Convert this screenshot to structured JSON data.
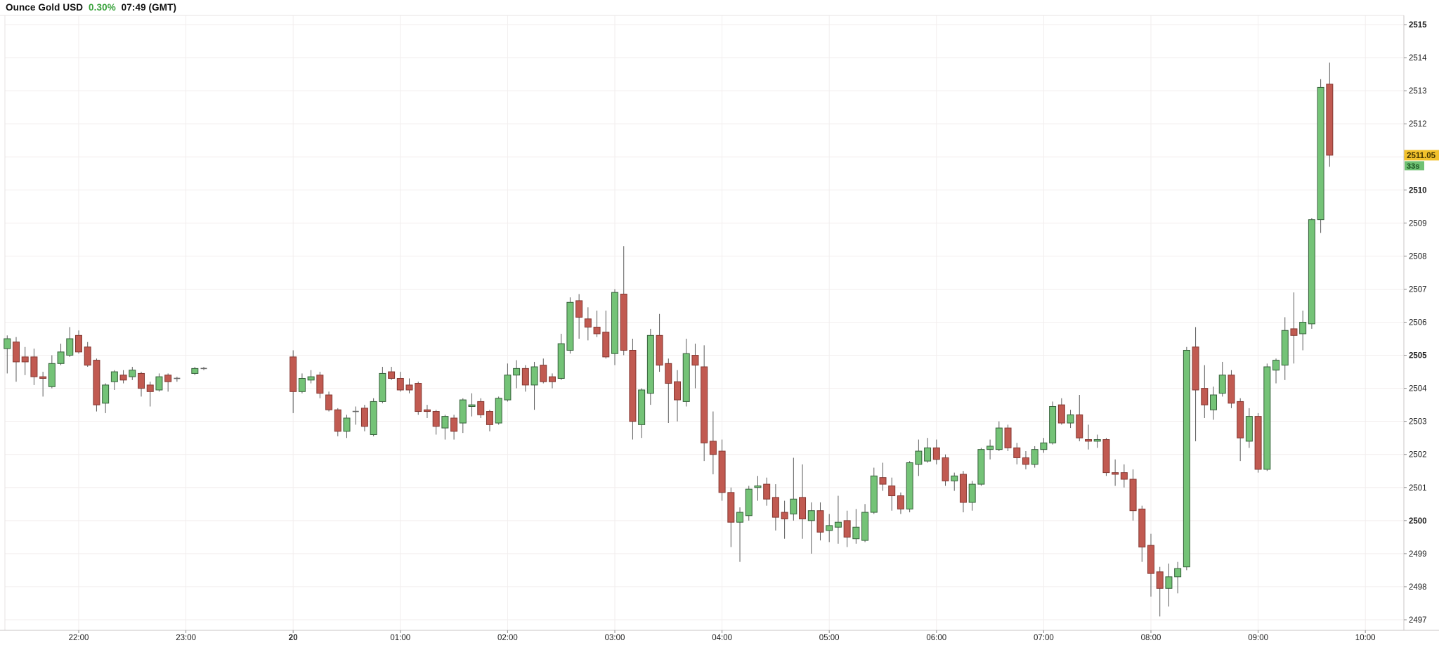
{
  "header": {
    "instrument": "Ounce Gold USD",
    "change_percent": "0.30%",
    "change_color": "#3aa33d",
    "clock": "07:49 (GMT)"
  },
  "price_axis": {
    "last_price": "2511.05",
    "last_price_value": 2511.05,
    "countdown": "33s",
    "badge_bg": "#f2c12c",
    "badge_text_color": "#433500",
    "countdown_bg": "#6fc173",
    "countdown_text_color": "#184f1f",
    "ticks": [
      {
        "value": 2515,
        "bold": true
      },
      {
        "value": 2514,
        "bold": false
      },
      {
        "value": 2513,
        "bold": false
      },
      {
        "value": 2512,
        "bold": false
      },
      {
        "value": 2511,
        "bold": false,
        "hidden": true
      },
      {
        "value": 2510,
        "bold": true
      },
      {
        "value": 2509,
        "bold": false
      },
      {
        "value": 2508,
        "bold": false
      },
      {
        "value": 2507,
        "bold": false
      },
      {
        "value": 2506,
        "bold": false
      },
      {
        "value": 2505,
        "bold": true
      },
      {
        "value": 2504,
        "bold": false
      },
      {
        "value": 2503,
        "bold": false
      },
      {
        "value": 2502,
        "bold": false
      },
      {
        "value": 2501,
        "bold": false
      },
      {
        "value": 2500,
        "bold": true
      },
      {
        "value": 2499,
        "bold": false
      },
      {
        "value": 2498,
        "bold": false
      },
      {
        "value": 2497,
        "bold": false
      }
    ]
  },
  "time_axis": {
    "labels": [
      {
        "time": "22:00",
        "label": "22:00",
        "bold": false
      },
      {
        "time": "23:00",
        "label": "23:00",
        "bold": false
      },
      {
        "time": "00:00",
        "label": "20",
        "bold": true
      },
      {
        "time": "01:00",
        "label": "01:00",
        "bold": false
      },
      {
        "time": "02:00",
        "label": "02:00",
        "bold": false
      },
      {
        "time": "03:00",
        "label": "03:00",
        "bold": false
      },
      {
        "time": "04:00",
        "label": "04:00",
        "bold": false
      },
      {
        "time": "05:00",
        "label": "05:00",
        "bold": false
      },
      {
        "time": "06:00",
        "label": "06:00",
        "bold": false
      },
      {
        "time": "07:00",
        "label": "07:00",
        "bold": false
      },
      {
        "time": "08:00",
        "label": "08:00",
        "bold": false
      },
      {
        "time": "09:00",
        "label": "09:00",
        "bold": false
      },
      {
        "time": "10:00",
        "label": "10:00",
        "bold": false
      }
    ]
  },
  "chart_data": {
    "type": "candlestick",
    "title": "Ounce Gold USD",
    "price_range": [
      2496.7,
      2515.3
    ],
    "time_range": [
      "21:20",
      "10:00"
    ],
    "grid": true,
    "colors": {
      "up_fill": "#74c377",
      "up_stroke": "#35603a",
      "down_fill": "#c15a51",
      "down_stroke": "#843731",
      "wick": "#5c5c5c",
      "flat": "#6a6a6a",
      "gridline": "#f2eeee",
      "axis_line": "#c9c4c4",
      "tick_mark": "#909090",
      "label_color": "#1b1b1b"
    },
    "columns": [
      "time",
      "open",
      "high",
      "low",
      "close"
    ],
    "candles": [
      [
        "21:20",
        2505.2,
        2505.6,
        2504.45,
        2505.5
      ],
      [
        "21:25",
        2505.4,
        2505.55,
        2504.2,
        2504.8
      ],
      [
        "21:30",
        2504.95,
        2505.25,
        2504.4,
        2504.8
      ],
      [
        "21:35",
        2504.95,
        2505.2,
        2504.1,
        2504.35
      ],
      [
        "21:40",
        2504.35,
        2504.5,
        2503.75,
        2504.3
      ],
      [
        "21:45",
        2504.05,
        2505.0,
        2504.0,
        2504.75
      ],
      [
        "21:50",
        2504.75,
        2505.35,
        2504.7,
        2505.1
      ],
      [
        "21:55",
        2505.0,
        2505.85,
        2504.95,
        2505.5
      ],
      [
        "22:00",
        2505.6,
        2505.75,
        2505.05,
        2505.1
      ],
      [
        "22:05",
        2505.25,
        2505.4,
        2504.65,
        2504.7
      ],
      [
        "22:10",
        2504.85,
        2504.9,
        2503.3,
        2503.5
      ],
      [
        "22:15",
        2503.55,
        2504.15,
        2503.25,
        2504.1
      ],
      [
        "22:20",
        2504.2,
        2504.55,
        2503.95,
        2504.5
      ],
      [
        "22:25",
        2504.4,
        2504.55,
        2504.15,
        2504.25
      ],
      [
        "22:30",
        2504.35,
        2504.65,
        2504.25,
        2504.55
      ],
      [
        "22:35",
        2504.45,
        2504.5,
        2503.75,
        2504.0
      ],
      [
        "22:40",
        2504.1,
        2504.2,
        2503.45,
        2503.9
      ],
      [
        "22:45",
        2503.95,
        2504.45,
        2503.9,
        2504.35
      ],
      [
        "22:50",
        2504.4,
        2504.45,
        2503.9,
        2504.2
      ],
      [
        "22:55",
        2504.3,
        2504.35,
        2504.2,
        2504.3
      ],
      [
        "23:05",
        2504.45,
        2504.65,
        2504.4,
        2504.6
      ],
      [
        "23:10",
        2504.6,
        2504.65,
        2504.55,
        2504.6
      ],
      [
        "00:00",
        2504.95,
        2505.15,
        2503.25,
        2503.9
      ],
      [
        "00:05",
        2503.9,
        2504.45,
        2503.85,
        2504.3
      ],
      [
        "00:10",
        2504.25,
        2504.55,
        2504.15,
        2504.35
      ],
      [
        "00:15",
        2504.4,
        2504.5,
        2503.7,
        2503.85
      ],
      [
        "00:20",
        2503.8,
        2503.9,
        2503.3,
        2503.35
      ],
      [
        "00:25",
        2503.35,
        2503.4,
        2502.55,
        2502.7
      ],
      [
        "00:30",
        2502.7,
        2503.2,
        2502.5,
        2503.1
      ],
      [
        "00:35",
        2503.3,
        2503.45,
        2502.9,
        2503.3
      ],
      [
        "00:40",
        2503.4,
        2503.5,
        2502.7,
        2502.85
      ],
      [
        "00:45",
        2502.6,
        2503.7,
        2502.55,
        2503.6
      ],
      [
        "00:50",
        2503.6,
        2504.65,
        2503.55,
        2504.45
      ],
      [
        "00:55",
        2504.5,
        2504.65,
        2504.25,
        2504.3
      ],
      [
        "01:00",
        2504.3,
        2504.5,
        2503.9,
        2503.95
      ],
      [
        "01:05",
        2504.1,
        2504.3,
        2503.85,
        2503.95
      ],
      [
        "01:10",
        2504.15,
        2504.2,
        2503.2,
        2503.3
      ],
      [
        "01:15",
        2503.35,
        2503.5,
        2503.1,
        2503.3
      ],
      [
        "01:20",
        2503.3,
        2503.35,
        2502.6,
        2502.85
      ],
      [
        "01:25",
        2502.8,
        2503.2,
        2502.45,
        2503.15
      ],
      [
        "01:30",
        2503.1,
        2503.2,
        2502.45,
        2502.7
      ],
      [
        "01:35",
        2502.95,
        2503.7,
        2502.65,
        2503.65
      ],
      [
        "01:40",
        2503.45,
        2503.85,
        2503.15,
        2503.5
      ],
      [
        "01:45",
        2503.6,
        2503.7,
        2503.1,
        2503.2
      ],
      [
        "01:50",
        2503.3,
        2503.35,
        2502.7,
        2502.9
      ],
      [
        "01:55",
        2502.95,
        2503.75,
        2502.9,
        2503.7
      ],
      [
        "02:00",
        2503.65,
        2504.75,
        2503.6,
        2504.4
      ],
      [
        "02:05",
        2504.4,
        2504.85,
        2504.0,
        2504.6
      ],
      [
        "02:10",
        2504.6,
        2504.7,
        2503.9,
        2504.1
      ],
      [
        "02:15",
        2504.1,
        2504.8,
        2503.35,
        2504.65
      ],
      [
        "02:20",
        2504.7,
        2504.9,
        2504.15,
        2504.2
      ],
      [
        "02:25",
        2504.35,
        2504.45,
        2504.0,
        2504.2
      ],
      [
        "02:30",
        2504.3,
        2505.65,
        2504.25,
        2505.35
      ],
      [
        "02:35",
        2505.15,
        2506.75,
        2505.05,
        2506.6
      ],
      [
        "02:40",
        2506.65,
        2506.85,
        2505.5,
        2506.15
      ],
      [
        "02:45",
        2506.1,
        2506.45,
        2505.45,
        2505.85
      ],
      [
        "02:50",
        2505.85,
        2506.35,
        2505.55,
        2505.65
      ],
      [
        "02:55",
        2505.7,
        2506.35,
        2504.9,
        2504.95
      ],
      [
        "03:00",
        2505.05,
        2507.0,
        2504.7,
        2506.9
      ],
      [
        "03:05",
        2506.85,
        2508.3,
        2505.0,
        2505.15
      ],
      [
        "03:10",
        2505.15,
        2505.5,
        2502.45,
        2503.0
      ],
      [
        "03:15",
        2502.9,
        2504.0,
        2502.5,
        2503.95
      ],
      [
        "03:20",
        2503.85,
        2505.8,
        2503.5,
        2505.6
      ],
      [
        "03:25",
        2505.6,
        2506.25,
        2504.5,
        2504.7
      ],
      [
        "03:30",
        2504.75,
        2504.9,
        2502.95,
        2504.15
      ],
      [
        "03:35",
        2504.2,
        2504.55,
        2503.0,
        2503.65
      ],
      [
        "03:40",
        2503.6,
        2505.5,
        2503.45,
        2505.05
      ],
      [
        "03:45",
        2505.0,
        2505.35,
        2504.0,
        2504.7
      ],
      [
        "03:50",
        2504.65,
        2505.3,
        2501.8,
        2502.35
      ],
      [
        "03:55",
        2502.4,
        2503.3,
        2501.4,
        2502.0
      ],
      [
        "04:00",
        2502.1,
        2502.45,
        2500.6,
        2500.85
      ],
      [
        "04:05",
        2500.85,
        2501.0,
        2499.2,
        2499.95
      ],
      [
        "04:10",
        2499.95,
        2500.4,
        2498.75,
        2500.25
      ],
      [
        "04:15",
        2500.15,
        2501.05,
        2500.0,
        2500.95
      ],
      [
        "04:20",
        2501.0,
        2501.35,
        2500.6,
        2501.05
      ],
      [
        "04:25",
        2501.1,
        2501.3,
        2500.45,
        2500.65
      ],
      [
        "04:30",
        2500.7,
        2501.1,
        2499.7,
        2500.1
      ],
      [
        "04:35",
        2500.25,
        2500.6,
        2499.45,
        2500.05
      ],
      [
        "04:40",
        2500.2,
        2501.9,
        2500.0,
        2500.65
      ],
      [
        "04:45",
        2500.7,
        2501.7,
        2499.45,
        2500.05
      ],
      [
        "04:50",
        2500.0,
        2500.55,
        2499.0,
        2500.3
      ],
      [
        "04:55",
        2500.3,
        2500.55,
        2499.4,
        2499.65
      ],
      [
        "05:00",
        2499.7,
        2500.2,
        2499.35,
        2499.85
      ],
      [
        "05:05",
        2499.8,
        2500.75,
        2499.3,
        2499.95
      ],
      [
        "05:10",
        2500.0,
        2500.3,
        2499.2,
        2499.5
      ],
      [
        "05:15",
        2499.45,
        2500.35,
        2499.3,
        2499.8
      ],
      [
        "05:20",
        2499.4,
        2500.5,
        2499.35,
        2500.25
      ],
      [
        "05:25",
        2500.25,
        2501.6,
        2500.2,
        2501.35
      ],
      [
        "05:30",
        2501.3,
        2501.75,
        2500.9,
        2501.1
      ],
      [
        "05:35",
        2501.05,
        2501.3,
        2500.3,
        2500.75
      ],
      [
        "05:40",
        2500.75,
        2500.85,
        2500.2,
        2500.35
      ],
      [
        "05:45",
        2500.35,
        2501.8,
        2500.25,
        2501.75
      ],
      [
        "05:50",
        2501.7,
        2502.45,
        2501.35,
        2502.1
      ],
      [
        "05:55",
        2501.8,
        2502.5,
        2501.75,
        2502.2
      ],
      [
        "06:00",
        2502.2,
        2502.45,
        2501.7,
        2501.85
      ],
      [
        "06:05",
        2501.9,
        2502.0,
        2501.05,
        2501.2
      ],
      [
        "06:10",
        2501.2,
        2501.45,
        2500.9,
        2501.35
      ],
      [
        "06:15",
        2501.4,
        2501.5,
        2500.25,
        2500.55
      ],
      [
        "06:20",
        2500.55,
        2501.2,
        2500.3,
        2501.1
      ],
      [
        "06:25",
        2501.1,
        2502.2,
        2501.05,
        2502.15
      ],
      [
        "06:30",
        2502.15,
        2502.45,
        2501.85,
        2502.25
      ],
      [
        "06:35",
        2502.15,
        2503.0,
        2502.1,
        2502.8
      ],
      [
        "06:40",
        2502.8,
        2502.9,
        2502.1,
        2502.2
      ],
      [
        "06:45",
        2502.2,
        2502.35,
        2501.7,
        2501.9
      ],
      [
        "06:50",
        2501.9,
        2502.1,
        2501.55,
        2501.7
      ],
      [
        "06:55",
        2501.7,
        2502.25,
        2501.6,
        2502.15
      ],
      [
        "07:00",
        2502.15,
        2502.5,
        2502.05,
        2502.35
      ],
      [
        "07:05",
        2502.35,
        2503.6,
        2502.3,
        2503.45
      ],
      [
        "07:10",
        2503.5,
        2503.7,
        2502.9,
        2502.95
      ],
      [
        "07:15",
        2502.95,
        2503.35,
        2502.8,
        2503.2
      ],
      [
        "07:20",
        2503.2,
        2503.8,
        2502.4,
        2502.5
      ],
      [
        "07:25",
        2502.45,
        2502.9,
        2502.15,
        2502.4
      ],
      [
        "07:30",
        2502.4,
        2502.6,
        2502.2,
        2502.45
      ],
      [
        "07:35",
        2502.45,
        2502.5,
        2501.35,
        2501.45
      ],
      [
        "07:40",
        2501.45,
        2501.85,
        2501.05,
        2501.4
      ],
      [
        "07:45",
        2501.45,
        2501.7,
        2501.0,
        2501.25
      ],
      [
        "07:50",
        2501.25,
        2501.55,
        2500.0,
        2500.3
      ],
      [
        "07:55",
        2500.35,
        2500.45,
        2498.75,
        2499.2
      ],
      [
        "08:00",
        2499.25,
        2499.6,
        2497.7,
        2498.4
      ],
      [
        "08:05",
        2498.45,
        2498.6,
        2497.1,
        2497.95
      ],
      [
        "08:10",
        2497.95,
        2498.7,
        2497.4,
        2498.3
      ],
      [
        "08:15",
        2498.3,
        2498.75,
        2497.8,
        2498.55
      ],
      [
        "08:20",
        2498.6,
        2505.25,
        2498.5,
        2505.15
      ],
      [
        "08:25",
        2505.25,
        2505.85,
        2502.4,
        2503.95
      ],
      [
        "08:30",
        2504.0,
        2504.7,
        2503.1,
        2503.5
      ],
      [
        "08:35",
        2503.35,
        2504.05,
        2503.05,
        2503.8
      ],
      [
        "08:40",
        2503.85,
        2504.8,
        2503.75,
        2504.4
      ],
      [
        "08:45",
        2504.4,
        2504.55,
        2503.4,
        2503.55
      ],
      [
        "08:50",
        2503.6,
        2503.7,
        2501.8,
        2502.5
      ],
      [
        "08:55",
        2502.4,
        2503.4,
        2502.2,
        2503.15
      ],
      [
        "09:00",
        2503.15,
        2503.25,
        2501.45,
        2501.55
      ],
      [
        "09:05",
        2501.55,
        2504.75,
        2501.5,
        2504.65
      ],
      [
        "09:10",
        2504.55,
        2504.9,
        2504.15,
        2504.85
      ],
      [
        "09:15",
        2504.7,
        2506.15,
        2504.25,
        2505.75
      ],
      [
        "09:20",
        2505.8,
        2506.9,
        2504.75,
        2505.6
      ],
      [
        "09:25",
        2505.65,
        2506.35,
        2505.15,
        2506.0
      ],
      [
        "09:30",
        2505.95,
        2509.15,
        2505.8,
        2509.1
      ],
      [
        "09:35",
        2509.1,
        2513.35,
        2508.7,
        2513.1
      ],
      [
        "09:40",
        2513.2,
        2513.85,
        2510.7,
        2511.05
      ]
    ]
  }
}
